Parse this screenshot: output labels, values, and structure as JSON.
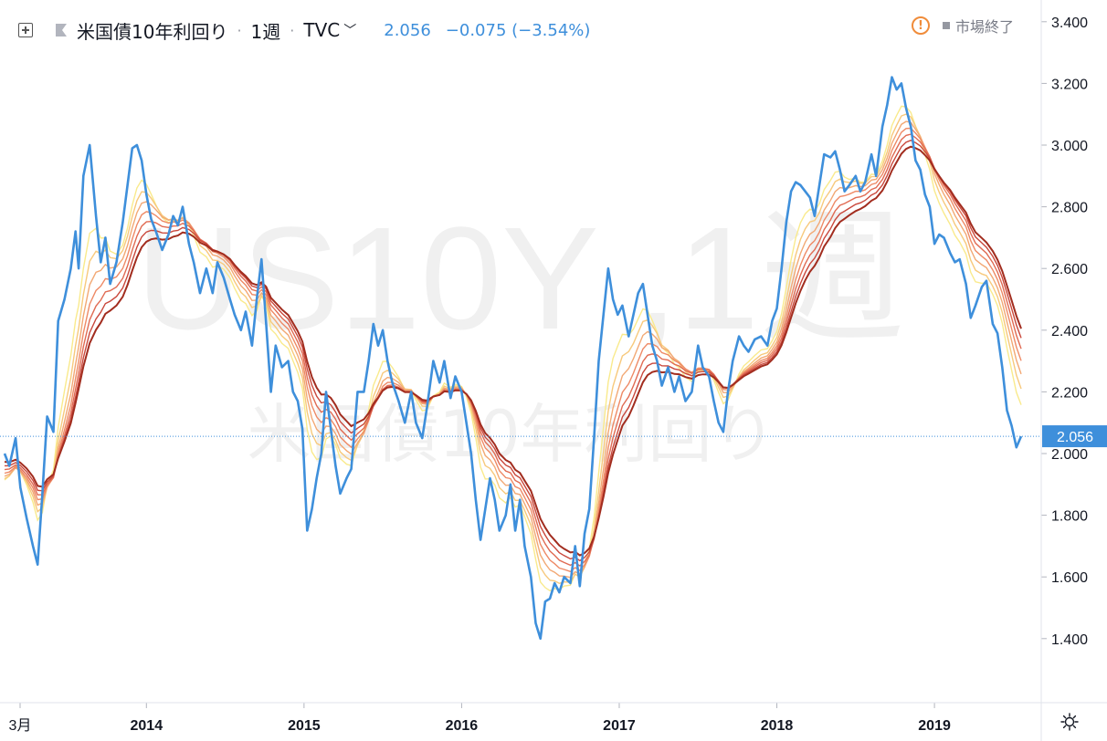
{
  "header": {
    "symbol": "米国債10年利回り",
    "interval": "1週",
    "source": "TVC",
    "last_value": "2.056",
    "change": "−0.075 (−3.54%)",
    "market_status": "市場終了"
  },
  "watermark": {
    "ticker": "US10Y ,1週",
    "name": "米国債10年利回り"
  },
  "icons": {
    "add": "plus-square-icon",
    "flag": "flag-icon",
    "warning": "warning-circle-icon",
    "settings": "gear-icon"
  },
  "colors": {
    "price": "#3e8fdb",
    "ribbon": [
      "#f9ea8c",
      "#f7c97c",
      "#f2a874",
      "#ee8a66",
      "#e06b53",
      "#c9483c",
      "#a22d1f"
    ]
  },
  "chart_data": {
    "type": "line",
    "ylim": [
      1.2,
      3.42
    ],
    "y_ticks": [
      "3.400",
      "3.200",
      "3.000",
      "2.800",
      "2.600",
      "2.400",
      "2.200",
      "2.000",
      "1.800",
      "1.600",
      "1.400"
    ],
    "x_labels": [
      {
        "label": "3月",
        "t": 2013.18
      },
      {
        "label": "2014",
        "t": 2014.0
      },
      {
        "label": "2015",
        "t": 2015.0
      },
      {
        "label": "2016",
        "t": 2016.0
      },
      {
        "label": "2017",
        "t": 2017.0
      },
      {
        "label": "2018",
        "t": 2018.0
      },
      {
        "label": "2019",
        "t": 2019.0
      }
    ],
    "x_range": [
      2013.1,
      2019.55
    ],
    "current_value": 2.056,
    "current_label": "2.056",
    "price_series": [
      [
        2013.1,
        2.0
      ],
      [
        2013.13,
        1.96
      ],
      [
        2013.17,
        2.05
      ],
      [
        2013.2,
        1.89
      ],
      [
        2013.24,
        1.79
      ],
      [
        2013.28,
        1.7
      ],
      [
        2013.31,
        1.64
      ],
      [
        2013.34,
        1.87
      ],
      [
        2013.37,
        2.12
      ],
      [
        2013.41,
        2.07
      ],
      [
        2013.44,
        2.43
      ],
      [
        2013.48,
        2.5
      ],
      [
        2013.52,
        2.6
      ],
      [
        2013.55,
        2.72
      ],
      [
        2013.57,
        2.6
      ],
      [
        2013.6,
        2.9
      ],
      [
        2013.64,
        3.0
      ],
      [
        2013.68,
        2.77
      ],
      [
        2013.71,
        2.62
      ],
      [
        2013.74,
        2.7
      ],
      [
        2013.77,
        2.55
      ],
      [
        2013.81,
        2.62
      ],
      [
        2013.85,
        2.75
      ],
      [
        2013.88,
        2.87
      ],
      [
        2013.91,
        2.99
      ],
      [
        2013.94,
        3.0
      ],
      [
        2013.97,
        2.95
      ],
      [
        2014.0,
        2.84
      ],
      [
        2014.03,
        2.76
      ],
      [
        2014.06,
        2.72
      ],
      [
        2014.1,
        2.66
      ],
      [
        2014.14,
        2.71
      ],
      [
        2014.17,
        2.77
      ],
      [
        2014.2,
        2.74
      ],
      [
        2014.23,
        2.8
      ],
      [
        2014.27,
        2.68
      ],
      [
        2014.3,
        2.62
      ],
      [
        2014.34,
        2.52
      ],
      [
        2014.38,
        2.6
      ],
      [
        2014.42,
        2.52
      ],
      [
        2014.45,
        2.62
      ],
      [
        2014.49,
        2.57
      ],
      [
        2014.53,
        2.5
      ],
      [
        2014.56,
        2.45
      ],
      [
        2014.6,
        2.4
      ],
      [
        2014.63,
        2.46
      ],
      [
        2014.67,
        2.35
      ],
      [
        2014.7,
        2.5
      ],
      [
        2014.73,
        2.63
      ],
      [
        2014.76,
        2.42
      ],
      [
        2014.79,
        2.2
      ],
      [
        2014.82,
        2.35
      ],
      [
        2014.86,
        2.28
      ],
      [
        2014.9,
        2.3
      ],
      [
        2014.93,
        2.2
      ],
      [
        2014.96,
        2.17
      ],
      [
        2014.99,
        2.08
      ],
      [
        2015.02,
        1.75
      ],
      [
        2015.05,
        1.82
      ],
      [
        2015.08,
        1.92
      ],
      [
        2015.11,
        2.0
      ],
      [
        2015.14,
        2.2
      ],
      [
        2015.17,
        2.08
      ],
      [
        2015.2,
        1.96
      ],
      [
        2015.23,
        1.87
      ],
      [
        2015.27,
        1.92
      ],
      [
        2015.3,
        1.95
      ],
      [
        2015.34,
        2.2
      ],
      [
        2015.38,
        2.2
      ],
      [
        2015.41,
        2.3
      ],
      [
        2015.44,
        2.42
      ],
      [
        2015.47,
        2.35
      ],
      [
        2015.5,
        2.4
      ],
      [
        2015.53,
        2.3
      ],
      [
        2015.56,
        2.23
      ],
      [
        2015.6,
        2.17
      ],
      [
        2015.64,
        2.1
      ],
      [
        2015.68,
        2.2
      ],
      [
        2015.71,
        2.1
      ],
      [
        2015.75,
        2.05
      ],
      [
        2015.78,
        2.15
      ],
      [
        2015.82,
        2.3
      ],
      [
        2015.86,
        2.23
      ],
      [
        2015.89,
        2.3
      ],
      [
        2015.93,
        2.18
      ],
      [
        2015.96,
        2.25
      ],
      [
        2016.0,
        2.2
      ],
      [
        2016.03,
        2.1
      ],
      [
        2016.06,
        2.0
      ],
      [
        2016.09,
        1.85
      ],
      [
        2016.12,
        1.72
      ],
      [
        2016.15,
        1.82
      ],
      [
        2016.18,
        1.92
      ],
      [
        2016.21,
        1.85
      ],
      [
        2016.24,
        1.75
      ],
      [
        2016.28,
        1.8
      ],
      [
        2016.31,
        1.9
      ],
      [
        2016.34,
        1.75
      ],
      [
        2016.37,
        1.85
      ],
      [
        2016.4,
        1.7
      ],
      [
        2016.44,
        1.6
      ],
      [
        2016.47,
        1.45
      ],
      [
        2016.5,
        1.4
      ],
      [
        2016.53,
        1.52
      ],
      [
        2016.56,
        1.53
      ],
      [
        2016.59,
        1.58
      ],
      [
        2016.62,
        1.55
      ],
      [
        2016.65,
        1.6
      ],
      [
        2016.69,
        1.58
      ],
      [
        2016.72,
        1.7
      ],
      [
        2016.75,
        1.57
      ],
      [
        2016.78,
        1.74
      ],
      [
        2016.81,
        1.82
      ],
      [
        2016.84,
        2.05
      ],
      [
        2016.87,
        2.3
      ],
      [
        2016.9,
        2.45
      ],
      [
        2016.93,
        2.6
      ],
      [
        2016.96,
        2.5
      ],
      [
        2016.99,
        2.45
      ],
      [
        2017.02,
        2.48
      ],
      [
        2017.06,
        2.38
      ],
      [
        2017.09,
        2.45
      ],
      [
        2017.12,
        2.52
      ],
      [
        2017.15,
        2.55
      ],
      [
        2017.18,
        2.45
      ],
      [
        2017.21,
        2.35
      ],
      [
        2017.24,
        2.3
      ],
      [
        2017.27,
        2.22
      ],
      [
        2017.31,
        2.28
      ],
      [
        2017.35,
        2.2
      ],
      [
        2017.38,
        2.25
      ],
      [
        2017.42,
        2.17
      ],
      [
        2017.46,
        2.2
      ],
      [
        2017.5,
        2.35
      ],
      [
        2017.53,
        2.28
      ],
      [
        2017.57,
        2.25
      ],
      [
        2017.6,
        2.17
      ],
      [
        2017.63,
        2.1
      ],
      [
        2017.66,
        2.07
      ],
      [
        2017.69,
        2.2
      ],
      [
        2017.72,
        2.3
      ],
      [
        2017.76,
        2.38
      ],
      [
        2017.79,
        2.35
      ],
      [
        2017.82,
        2.33
      ],
      [
        2017.86,
        2.37
      ],
      [
        2017.9,
        2.38
      ],
      [
        2017.94,
        2.35
      ],
      [
        2017.97,
        2.43
      ],
      [
        2018.0,
        2.47
      ],
      [
        2018.03,
        2.6
      ],
      [
        2018.06,
        2.75
      ],
      [
        2018.09,
        2.85
      ],
      [
        2018.12,
        2.88
      ],
      [
        2018.15,
        2.87
      ],
      [
        2018.18,
        2.85
      ],
      [
        2018.21,
        2.83
      ],
      [
        2018.24,
        2.77
      ],
      [
        2018.27,
        2.87
      ],
      [
        2018.3,
        2.97
      ],
      [
        2018.34,
        2.96
      ],
      [
        2018.37,
        2.98
      ],
      [
        2018.4,
        2.92
      ],
      [
        2018.43,
        2.85
      ],
      [
        2018.46,
        2.87
      ],
      [
        2018.5,
        2.9
      ],
      [
        2018.53,
        2.85
      ],
      [
        2018.56,
        2.88
      ],
      [
        2018.6,
        2.97
      ],
      [
        2018.63,
        2.9
      ],
      [
        2018.67,
        3.06
      ],
      [
        2018.7,
        3.13
      ],
      [
        2018.73,
        3.22
      ],
      [
        2018.76,
        3.18
      ],
      [
        2018.79,
        3.2
      ],
      [
        2018.82,
        3.12
      ],
      [
        2018.85,
        3.06
      ],
      [
        2018.88,
        2.95
      ],
      [
        2018.91,
        2.92
      ],
      [
        2018.94,
        2.84
      ],
      [
        2018.97,
        2.8
      ],
      [
        2019.0,
        2.68
      ],
      [
        2019.03,
        2.71
      ],
      [
        2019.06,
        2.7
      ],
      [
        2019.1,
        2.65
      ],
      [
        2019.13,
        2.62
      ],
      [
        2019.16,
        2.63
      ],
      [
        2019.2,
        2.55
      ],
      [
        2019.23,
        2.44
      ],
      [
        2019.26,
        2.48
      ],
      [
        2019.3,
        2.54
      ],
      [
        2019.33,
        2.56
      ],
      [
        2019.37,
        2.42
      ],
      [
        2019.4,
        2.39
      ],
      [
        2019.43,
        2.28
      ],
      [
        2019.46,
        2.14
      ],
      [
        2019.49,
        2.09
      ],
      [
        2019.52,
        2.02
      ],
      [
        2019.55,
        2.056
      ]
    ],
    "ribbon_windows": [
      6,
      8,
      10,
      12,
      14,
      16,
      18
    ]
  }
}
